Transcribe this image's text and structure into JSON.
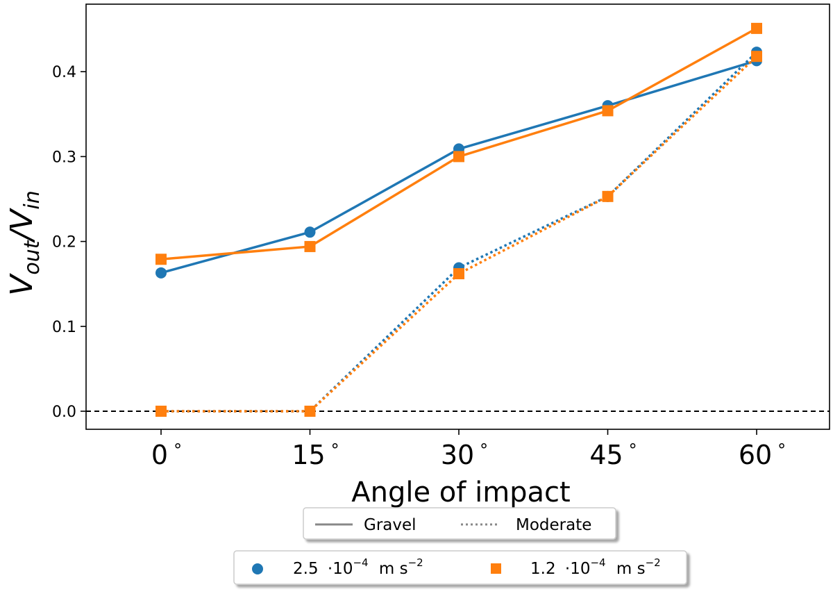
{
  "chart_data": {
    "type": "line",
    "xlabel": "Angle of impact",
    "ylabel": "V_out/V_in",
    "ylabel_parts": {
      "v1": "V",
      "sub1": "out",
      "slash": "/",
      "v2": "V",
      "sub2": "in"
    },
    "categories": [
      "0",
      "15",
      "30",
      "45",
      "60"
    ],
    "degree_symbol": "°",
    "ylim": [
      -0.02,
      0.48
    ],
    "yticks": [
      0.0,
      0.1,
      0.2,
      0.3,
      0.4
    ],
    "ytick_labels": [
      "0.0",
      "0.1",
      "0.2",
      "0.3",
      "0.4"
    ],
    "reference_line": {
      "y": 0.0,
      "style": "dashed",
      "color": "#000000"
    },
    "series": [
      {
        "name": "2.5e-4 Gravel",
        "acceleration": "2.5",
        "environment": "Gravel",
        "color": "#1f77b4",
        "marker": "circle",
        "linestyle": "solid",
        "values": [
          0.163,
          0.211,
          0.309,
          0.36,
          0.413
        ]
      },
      {
        "name": "1.2e-4 Gravel",
        "acceleration": "1.2",
        "environment": "Gravel",
        "color": "#ff7f0e",
        "marker": "square",
        "linestyle": "solid",
        "values": [
          0.179,
          0.194,
          0.3,
          0.354,
          0.451
        ]
      },
      {
        "name": "2.5e-4 Moderate",
        "acceleration": "2.5",
        "environment": "Moderate",
        "color": "#1f77b4",
        "marker": "circle",
        "linestyle": "dotted",
        "values": [
          0.0,
          0.0,
          0.169,
          0.253,
          0.423
        ]
      },
      {
        "name": "1.2e-4 Moderate",
        "acceleration": "1.2",
        "environment": "Moderate",
        "color": "#ff7f0e",
        "marker": "square",
        "linestyle": "dotted",
        "values": [
          0.0,
          0.0,
          0.162,
          0.253,
          0.418
        ]
      }
    ],
    "legend_style": {
      "location": "below-axes",
      "entries": [
        {
          "label": "Gravel",
          "linestyle": "solid",
          "color": "#888888"
        },
        {
          "label": "Moderate",
          "linestyle": "dotted",
          "color": "#888888"
        }
      ]
    },
    "legend_acceleration": {
      "location": "below-style-legend",
      "entries": [
        {
          "mantissa": "2.5",
          "times": "·10",
          "exponent": "−4",
          "unit": "m s",
          "unit_exponent": "−2",
          "color": "#1f77b4",
          "marker": "circle"
        },
        {
          "mantissa": "1.2",
          "times": "·10",
          "exponent": "−4",
          "unit": "m s",
          "unit_exponent": "−2",
          "color": "#ff7f0e",
          "marker": "square"
        }
      ]
    }
  }
}
